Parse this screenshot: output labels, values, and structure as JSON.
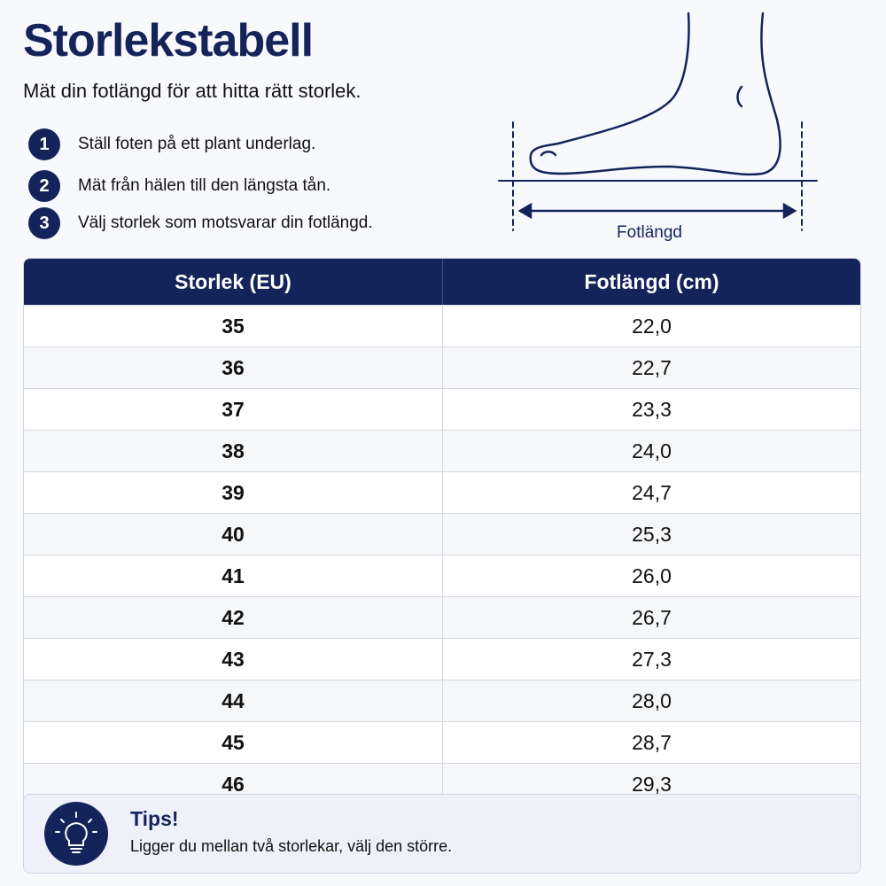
{
  "header": {
    "title": "Storlekstabell",
    "subtitle": "Mät din fotlängd för att hitta rätt storlek."
  },
  "steps": [
    {
      "number": "1",
      "text": "Ställ foten på ett plant underlag."
    },
    {
      "number": "2",
      "text": "Mät från hälen till den längsta tån."
    },
    {
      "number": "3",
      "text": "Välj storlek som motsvarar din fotlängd."
    }
  ],
  "illustration": {
    "label": "Fotlängd"
  },
  "table": {
    "headers": [
      "Storlek (EU)",
      "Fotlängd (cm)"
    ],
    "rows": [
      [
        "35",
        "22,0"
      ],
      [
        "36",
        "22,7"
      ],
      [
        "37",
        "23,3"
      ],
      [
        "38",
        "24,0"
      ],
      [
        "39",
        "24,7"
      ],
      [
        "40",
        "25,3"
      ],
      [
        "41",
        "26,0"
      ],
      [
        "42",
        "26,7"
      ],
      [
        "43",
        "27,3"
      ],
      [
        "44",
        "28,0"
      ],
      [
        "45",
        "28,7"
      ],
      [
        "46",
        "29,3"
      ]
    ]
  },
  "tip": {
    "title": "Tips!",
    "text": "Ligger du mellan två storlekar, välj den större."
  }
}
